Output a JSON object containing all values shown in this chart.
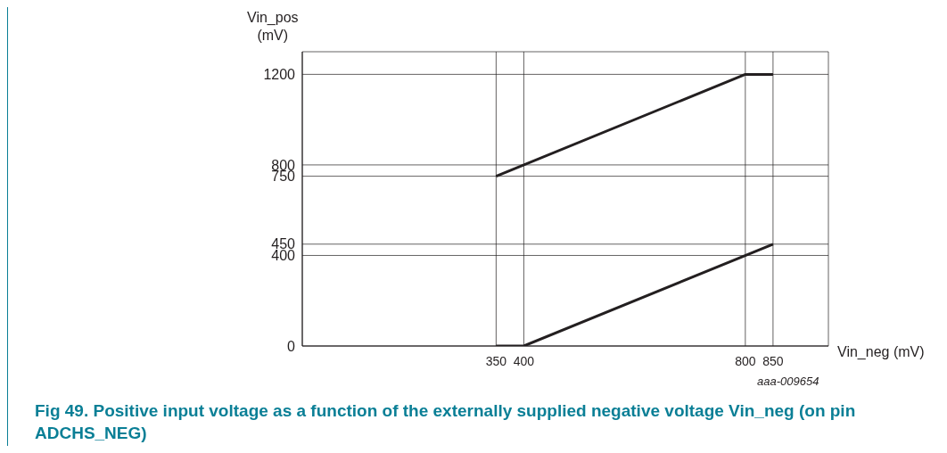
{
  "chart_data": {
    "type": "line",
    "title": "Fig 49.   Positive input voltage as a function of the externally supplied negative voltage Vin_neg (on pin ADCHS_NEG)",
    "xlabel": "Vin_neg (mV)",
    "ylabel": "Vin_pos (mV)",
    "annotations": [
      "aaa-009654"
    ],
    "series": [
      {
        "color": "#231f20",
        "x": [
          350,
          800,
          850
        ],
        "values": [
          750,
          1200,
          1200
        ]
      },
      {
        "color": "#231f20",
        "x": [
          350,
          400,
          850
        ],
        "values": [
          0,
          0,
          450
        ]
      }
    ],
    "xlim": [
      0,
      950
    ],
    "xticks": [
      350,
      400,
      800,
      850
    ],
    "ylim": [
      0,
      1300
    ],
    "yticks": [
      0,
      400,
      450,
      750,
      800,
      1200
    ],
    "grid": true,
    "marker": "none",
    "line_style": "solid"
  }
}
